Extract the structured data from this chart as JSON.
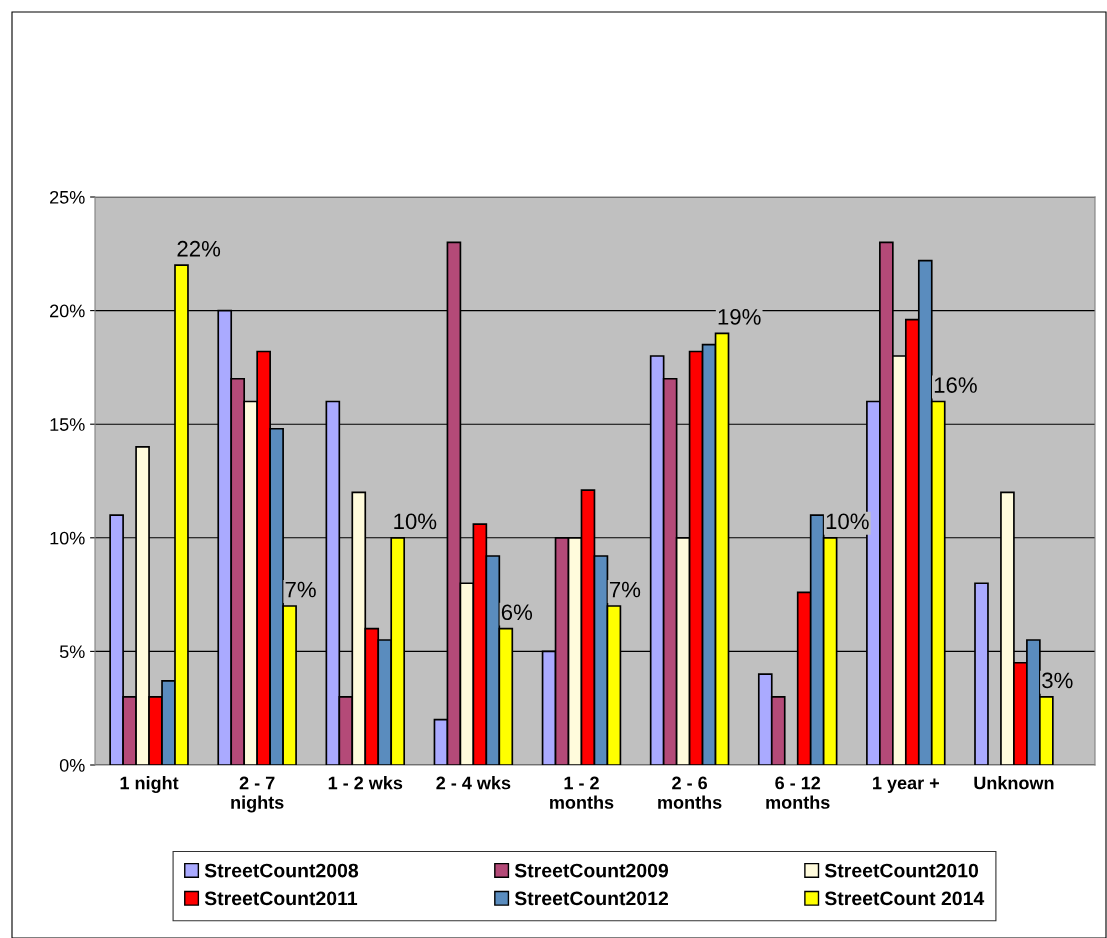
{
  "chart_data": {
    "type": "bar",
    "categories": [
      "1 night",
      "2 - 7 nights",
      "1 - 2 wks",
      "2 - 4 wks",
      "1 - 2 months",
      "2 - 6 months",
      "6 - 12 months",
      "1 year +",
      "Unknown"
    ],
    "ylim": [
      0,
      25
    ],
    "yticks": [
      {
        "value": 0,
        "label": "0%"
      },
      {
        "value": 5,
        "label": "5%"
      },
      {
        "value": 10,
        "label": "10%"
      },
      {
        "value": 15,
        "label": "15%"
      },
      {
        "value": 20,
        "label": "20%"
      },
      {
        "value": 25,
        "label": "25%"
      }
    ],
    "grid": "y",
    "legend": "bottom",
    "series": [
      {
        "name": "StreetCount2008",
        "color": "#aaaaff",
        "values": [
          11,
          20,
          16,
          2,
          5,
          18,
          4,
          16,
          8
        ]
      },
      {
        "name": "StreetCount2009",
        "color": "#b44a78",
        "values": [
          3,
          17,
          3,
          23,
          10,
          17,
          3,
          23,
          null
        ]
      },
      {
        "name": "StreetCount2010",
        "color": "#fffbdc",
        "values": [
          14,
          16,
          12,
          8,
          10,
          10,
          null,
          18,
          12
        ]
      },
      {
        "name": "StreetCount2011",
        "color": "#ff0000",
        "values": [
          3,
          18.2,
          6.0,
          10.6,
          12.1,
          18.2,
          7.6,
          19.6,
          4.5
        ]
      },
      {
        "name": "StreetCount2012",
        "color": "#5a8cbe",
        "values": [
          3.7,
          14.8,
          5.5,
          9.2,
          9.2,
          18.5,
          11.0,
          22.2,
          5.5
        ]
      },
      {
        "name": "StreetCount 2014",
        "color": "#ffff00",
        "values": [
          22,
          7,
          10,
          6,
          7,
          19,
          10,
          16,
          3
        ],
        "value_labels": [
          "22%",
          "7%",
          "10%",
          "6%",
          "7%",
          "19%",
          "10%",
          "16%",
          "3%"
        ]
      }
    ]
  }
}
